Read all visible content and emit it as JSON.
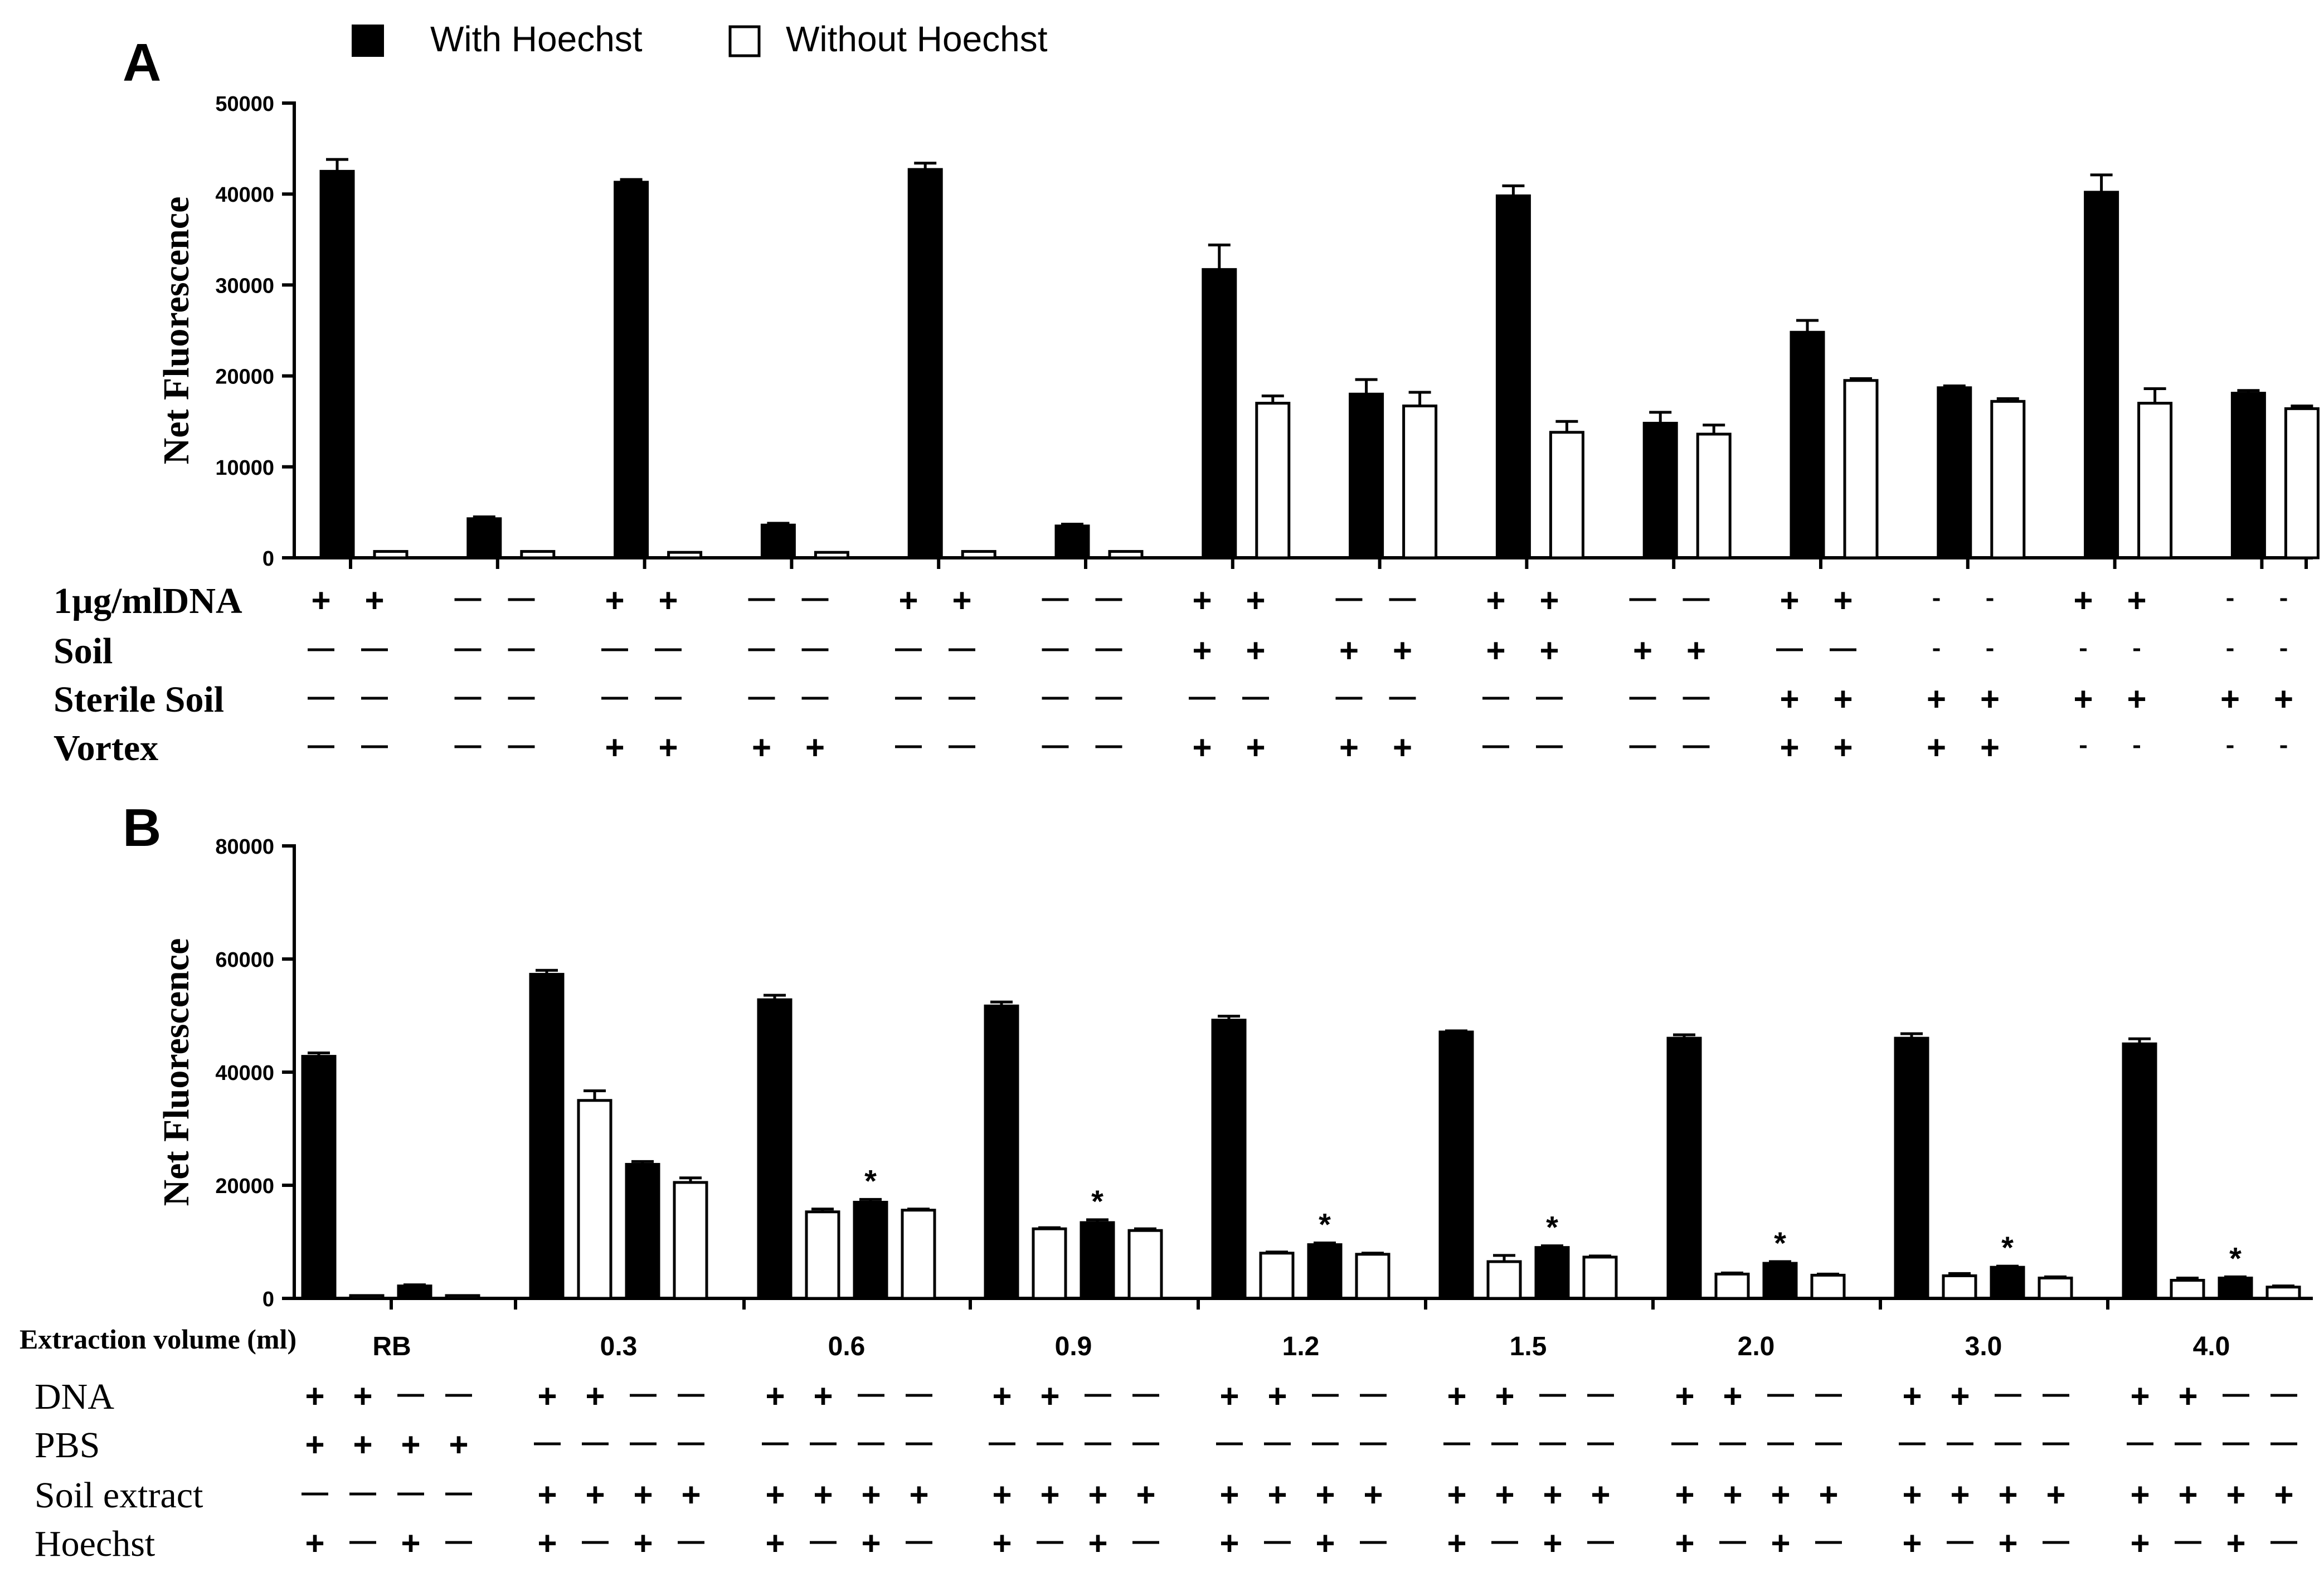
{
  "legend": {
    "with_label": "With Hoechst",
    "without_label": "Without Hoechst",
    "placement": "top-left, above panel A"
  },
  "colors": {
    "with": "#000000",
    "without": "#ffffff",
    "stroke": "#000000"
  },
  "chart_data": [
    {
      "panel": "A",
      "type": "bar",
      "ylabel": "Net Fluorescence",
      "ylim": [
        0,
        50000
      ],
      "yticks": [
        0,
        10000,
        20000,
        30000,
        40000,
        50000
      ],
      "ytick_labels": [
        "0",
        "10,000",
        "20,000",
        "30,000",
        "40,000",
        "50,000"
      ],
      "grid": false,
      "groups": 14,
      "series": [
        {
          "name": "With Hoechst",
          "values": [
            42500,
            4300,
            41300,
            3600,
            42700,
            3500,
            31700,
            18000,
            39800,
            14800,
            24800,
            18700,
            40200,
            18100
          ],
          "errors": [
            1300,
            200,
            300,
            200,
            700,
            200,
            2700,
            1600,
            1100,
            1200,
            1300,
            200,
            1900,
            300
          ]
        },
        {
          "name": "Without Hoechst",
          "values": [
            700,
            700,
            600,
            600,
            700,
            700,
            17000,
            16700,
            13800,
            13600,
            19500,
            17200,
            17000,
            16400
          ],
          "errors": [
            0,
            0,
            0,
            0,
            0,
            0,
            800,
            1500,
            1200,
            1000,
            200,
            300,
            1600,
            300
          ]
        }
      ],
      "condition_table": [
        {
          "label": "1µg/mlDNA",
          "cells": [
            "+",
            "+",
            "—",
            "—",
            "+",
            "+",
            "—",
            "—",
            "+",
            "+",
            "—",
            "—",
            "+",
            "+",
            "—",
            "—",
            "+",
            "+",
            "—",
            "—",
            "+",
            "+",
            "-",
            "-",
            "+",
            "+",
            "-",
            "-"
          ]
        },
        {
          "label": "Soil",
          "cells": [
            "—",
            "—",
            "—",
            "—",
            "—",
            "—",
            "—",
            "—",
            "—",
            "—",
            "—",
            "—",
            "+",
            "+",
            "+",
            "+",
            "+",
            "+",
            "+",
            "+",
            "—",
            "—",
            "-",
            "-",
            "-",
            "-",
            "-",
            "-"
          ]
        },
        {
          "label": "Sterile Soil",
          "cells": [
            "—",
            "—",
            "—",
            "—",
            "—",
            "—",
            "—",
            "—",
            "—",
            "—",
            "—",
            "—",
            "—",
            "—",
            "—",
            "—",
            "—",
            "—",
            "—",
            "—",
            "+",
            "+",
            "+",
            "+",
            "+",
            "+",
            "+",
            "+"
          ]
        },
        {
          "label": "Vortex",
          "cells": [
            "—",
            "—",
            "—",
            "—",
            "+",
            "+",
            "+",
            "+",
            "—",
            "—",
            "—",
            "—",
            "+",
            "+",
            "+",
            "+",
            "—",
            "—",
            "—",
            "—",
            "+",
            "+",
            "+",
            "+",
            "-",
            "-",
            "-",
            "-"
          ]
        }
      ]
    },
    {
      "panel": "B",
      "type": "bar",
      "ylabel": "Net Fluorescence",
      "ylim": [
        0,
        80000
      ],
      "yticks": [
        0,
        20000,
        40000,
        60000,
        80000
      ],
      "ytick_labels": [
        "0",
        "20,000",
        "40,000",
        "60,000",
        "80,000"
      ],
      "grid": false,
      "xlabel": "Extraction volume (ml)",
      "categories": [
        "RB",
        "0.3",
        "0.6",
        "0.9",
        "1.2",
        "1.5",
        "2.0",
        "3.0",
        "4.0"
      ],
      "bar_fill_pattern": [
        "with",
        "without",
        "with",
        "without"
      ],
      "values": [
        [
          42800,
          500,
          2200,
          500
        ],
        [
          57300,
          35000,
          23700,
          20500
        ],
        [
          52800,
          15300,
          17000,
          15600
        ],
        [
          51700,
          12300,
          13400,
          12000
        ],
        [
          49200,
          8000,
          9500,
          7800
        ],
        [
          47100,
          6500,
          9000,
          7300
        ],
        [
          46000,
          4300,
          6200,
          4100
        ],
        [
          46000,
          4000,
          5500,
          3600
        ],
        [
          45000,
          3200,
          3600,
          2000
        ]
      ],
      "errors": [
        [
          600,
          0,
          200,
          0
        ],
        [
          700,
          1700,
          500,
          800
        ],
        [
          800,
          500,
          500,
          200
        ],
        [
          700,
          200,
          500,
          300
        ],
        [
          700,
          200,
          300,
          200
        ],
        [
          200,
          1100,
          300,
          200
        ],
        [
          600,
          200,
          300,
          200
        ],
        [
          800,
          400,
          200,
          200
        ],
        [
          900,
          400,
          200,
          200
        ]
      ],
      "significance_marker": "*",
      "significance_groups": [
        "0.6",
        "0.9",
        "1.2",
        "1.5",
        "2.0",
        "3.0",
        "4.0"
      ],
      "condition_table": [
        {
          "label": "DNA",
          "cells": [
            "+",
            "+",
            "—",
            "—",
            "+",
            "+",
            "—",
            "—",
            "+",
            "+",
            "—",
            "—",
            "+",
            "+",
            "—",
            "—",
            "+",
            "+",
            "—",
            "—",
            "+",
            "+",
            "—",
            "—",
            "+",
            "+",
            "—",
            "—",
            "+",
            "+",
            "—",
            "—",
            "+",
            "+",
            "—",
            "—"
          ]
        },
        {
          "label": "PBS",
          "cells": [
            "+",
            "+",
            "+",
            "+",
            "—",
            "—",
            "—",
            "—",
            "—",
            "—",
            "—",
            "—",
            "—",
            "—",
            "—",
            "—",
            "—",
            "—",
            "—",
            "—",
            "—",
            "—",
            "—",
            "—",
            "—",
            "—",
            "—",
            "—",
            "—",
            "—",
            "—",
            "—",
            "—",
            "—",
            "—",
            "—"
          ]
        },
        {
          "label": "Soil extract",
          "cells": [
            "—",
            "—",
            "—",
            "—",
            "+",
            "+",
            "+",
            "+",
            "+",
            "+",
            "+",
            "+",
            "+",
            "+",
            "+",
            "+",
            "+",
            "+",
            "+",
            "+",
            "+",
            "+",
            "+",
            "+",
            "+",
            "+",
            "+",
            "+",
            "+",
            "+",
            "+",
            "+",
            "+",
            "+",
            "+",
            "+"
          ]
        },
        {
          "label": "Hoechst",
          "cells": [
            "+",
            "—",
            "+",
            "—",
            "+",
            "—",
            "+",
            "—",
            "+",
            "—",
            "+",
            "—",
            "+",
            "—",
            "+",
            "—",
            "+",
            "—",
            "+",
            "—",
            "+",
            "—",
            "+",
            "—",
            "+",
            "—",
            "+",
            "—",
            "+",
            "—",
            "+",
            "—",
            "+",
            "—",
            "+",
            "—"
          ]
        }
      ]
    }
  ],
  "panel_labels": [
    "A",
    "B"
  ]
}
